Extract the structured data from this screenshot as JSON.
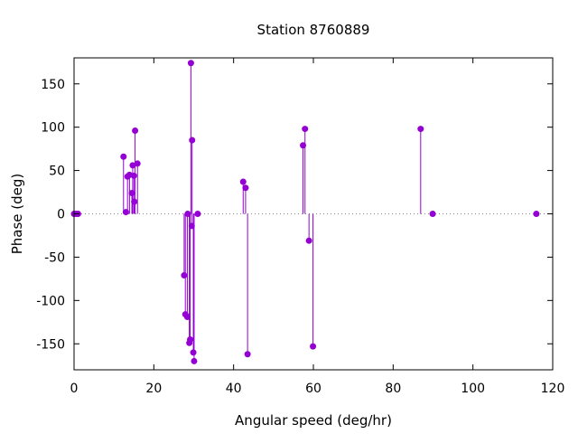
{
  "chart_data": {
    "type": "scatter",
    "style": "impulses-with-points",
    "title": "Station 8760889",
    "xlabel": "Angular speed (deg/hr)",
    "ylabel": "Phase (deg)",
    "xlim": [
      0,
      120
    ],
    "ylim": [
      -180,
      180
    ],
    "xticks": [
      0,
      20,
      40,
      60,
      80,
      100,
      120
    ],
    "yticks": [
      -150,
      -100,
      -50,
      0,
      50,
      100,
      150
    ],
    "zero_line": "dotted",
    "grid": false,
    "legend": "none",
    "color": "#9400d3",
    "series": [
      {
        "points": [
          [
            0.0,
            0
          ],
          [
            0.5,
            0
          ],
          [
            1.0,
            0
          ],
          [
            12.4,
            66
          ],
          [
            13.0,
            2
          ],
          [
            13.4,
            43
          ],
          [
            13.9,
            45
          ],
          [
            14.5,
            24
          ],
          [
            14.7,
            56
          ],
          [
            15.0,
            44
          ],
          [
            15.1,
            14
          ],
          [
            15.3,
            96
          ],
          [
            15.9,
            58
          ],
          [
            27.6,
            -71
          ],
          [
            27.9,
            -116
          ],
          [
            28.4,
            -119
          ],
          [
            28.5,
            0
          ],
          [
            28.9,
            -149
          ],
          [
            29.1,
            -145
          ],
          [
            29.3,
            174
          ],
          [
            29.5,
            -14
          ],
          [
            29.6,
            85
          ],
          [
            29.9,
            -160
          ],
          [
            30.1,
            -170
          ],
          [
            31.0,
            0
          ],
          [
            42.4,
            37
          ],
          [
            43.0,
            30
          ],
          [
            43.5,
            -162
          ],
          [
            57.4,
            79
          ],
          [
            57.9,
            98
          ],
          [
            58.9,
            -31
          ],
          [
            59.9,
            -153
          ],
          [
            86.9,
            98
          ],
          [
            89.9,
            0
          ],
          [
            115.9,
            0
          ]
        ]
      }
    ]
  }
}
